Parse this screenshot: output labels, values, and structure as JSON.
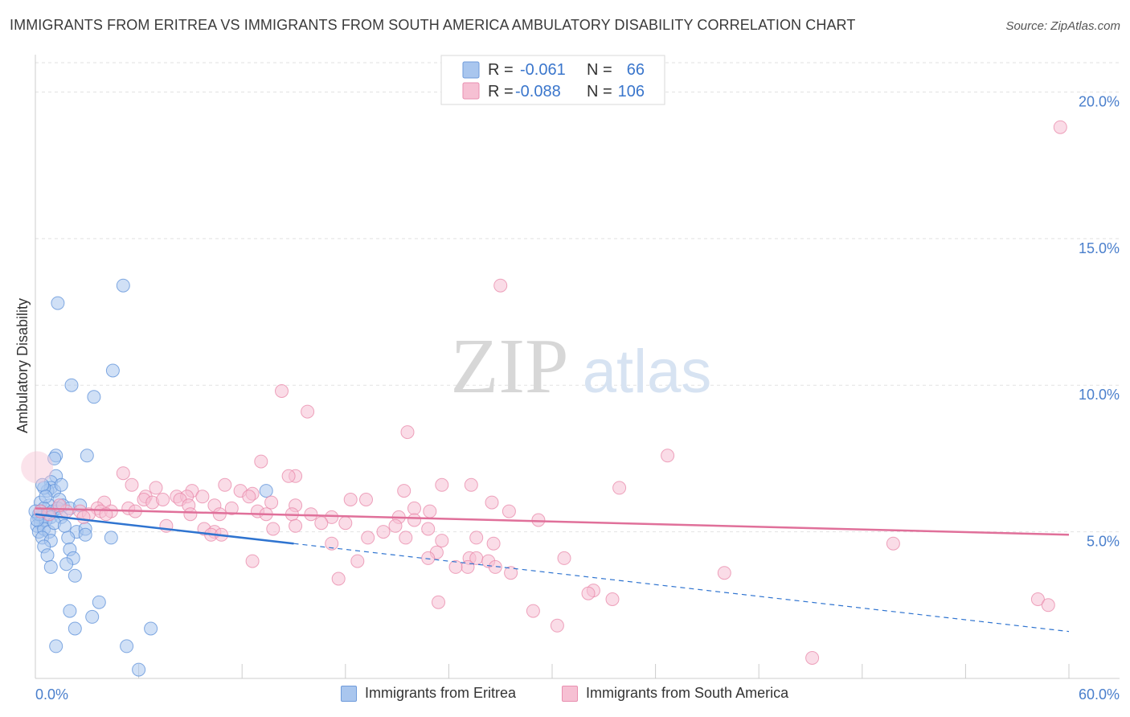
{
  "title": "IMMIGRANTS FROM ERITREA VS IMMIGRANTS FROM SOUTH AMERICA AMBULATORY DISABILITY CORRELATION CHART",
  "source": "Source: ZipAtlas.com",
  "watermark": {
    "zip": "ZIP",
    "atlas": "atlas"
  },
  "chart_data": {
    "type": "scatter",
    "xlabel": "",
    "ylabel": "Ambulatory Disability",
    "xlim": [
      0,
      60
    ],
    "ylim": [
      0,
      21
    ],
    "x_tick_labels": [
      "0.0%",
      "60.0%"
    ],
    "y_ticks": [
      5,
      10,
      15,
      20
    ],
    "y_tick_labels": [
      "5.0%",
      "10.0%",
      "15.0%",
      "20.0%"
    ],
    "legend_top": [
      {
        "r_label": "R =",
        "r_value": "-0.061",
        "n_label": "N =",
        "n_value": "66"
      },
      {
        "r_label": "R =",
        "r_value": "-0.088",
        "n_label": "N =",
        "n_value": "106"
      }
    ],
    "series": [
      {
        "name": "Immigrants from Eritrea",
        "color": "#5b8fd8",
        "fill": "#a9c6ee",
        "line_color": "#2f74d0",
        "trend": {
          "x0": 0,
          "y0": 5.6,
          "x1": 15,
          "y1": 4.6,
          "dash_to_x": 60,
          "dash_to_y": 1.6
        },
        "points": [
          [
            1.3,
            12.8
          ],
          [
            5.1,
            13.4
          ],
          [
            4.5,
            10.5
          ],
          [
            2.1,
            10.0
          ],
          [
            3.4,
            9.6
          ],
          [
            1.2,
            7.6
          ],
          [
            1.1,
            7.5
          ],
          [
            3.0,
            7.6
          ],
          [
            1.2,
            6.9
          ],
          [
            0.9,
            6.7
          ],
          [
            0.9,
            6.5
          ],
          [
            0.7,
            6.4
          ],
          [
            1.1,
            6.4
          ],
          [
            0.5,
            6.5
          ],
          [
            0.4,
            6.6
          ],
          [
            0.3,
            6.0
          ],
          [
            1.4,
            6.1
          ],
          [
            0.8,
            5.9
          ],
          [
            0.5,
            5.8
          ],
          [
            0.3,
            5.7
          ],
          [
            1.0,
            5.7
          ],
          [
            1.3,
            5.8
          ],
          [
            1.6,
            5.9
          ],
          [
            0.7,
            5.6
          ],
          [
            0.4,
            5.5
          ],
          [
            0.2,
            5.5
          ],
          [
            0.9,
            5.5
          ],
          [
            1.5,
            5.5
          ],
          [
            2.0,
            5.8
          ],
          [
            0.3,
            5.3
          ],
          [
            0.1,
            5.2
          ],
          [
            0.6,
            5.4
          ],
          [
            0.2,
            5.0
          ],
          [
            0.5,
            5.1
          ],
          [
            0.8,
            5.0
          ],
          [
            1.1,
            5.3
          ],
          [
            2.4,
            5.0
          ],
          [
            2.9,
            5.1
          ],
          [
            2.9,
            4.9
          ],
          [
            0.4,
            4.8
          ],
          [
            0.9,
            4.7
          ],
          [
            1.9,
            4.8
          ],
          [
            4.4,
            4.8
          ],
          [
            0.5,
            4.5
          ],
          [
            0.7,
            4.2
          ],
          [
            2.0,
            4.4
          ],
          [
            2.2,
            4.1
          ],
          [
            0.9,
            3.8
          ],
          [
            1.8,
            3.9
          ],
          [
            2.3,
            3.5
          ],
          [
            3.7,
            2.6
          ],
          [
            2.0,
            2.3
          ],
          [
            3.3,
            2.1
          ],
          [
            2.3,
            1.7
          ],
          [
            6.7,
            1.7
          ],
          [
            1.2,
            1.1
          ],
          [
            5.3,
            1.1
          ],
          [
            6.0,
            0.3
          ],
          [
            13.4,
            6.4
          ],
          [
            1.7,
            5.2
          ],
          [
            0.6,
            6.2
          ],
          [
            1.5,
            6.6
          ],
          [
            2.6,
            5.9
          ],
          [
            0.2,
            5.6
          ],
          [
            0.0,
            5.7
          ],
          [
            0.1,
            5.4
          ]
        ]
      },
      {
        "name": "Immigrants from South America",
        "color": "#e887a8",
        "fill": "#f6c0d3",
        "line_color": "#e0709a",
        "trend": {
          "x0": 0,
          "y0": 5.8,
          "x1": 60,
          "y1": 4.9
        },
        "points": [
          [
            59.5,
            18.8
          ],
          [
            27.0,
            13.4
          ],
          [
            14.3,
            9.8
          ],
          [
            15.8,
            9.1
          ],
          [
            21.6,
            8.4
          ],
          [
            36.7,
            7.6
          ],
          [
            13.1,
            7.4
          ],
          [
            5.1,
            7.0
          ],
          [
            15.1,
            6.9
          ],
          [
            14.7,
            6.9
          ],
          [
            5.6,
            6.6
          ],
          [
            11.0,
            6.6
          ],
          [
            23.6,
            6.6
          ],
          [
            25.3,
            6.6
          ],
          [
            7.0,
            6.5
          ],
          [
            11.9,
            6.4
          ],
          [
            12.6,
            6.3
          ],
          [
            9.1,
            6.4
          ],
          [
            33.9,
            6.5
          ],
          [
            21.4,
            6.4
          ],
          [
            12.4,
            6.2
          ],
          [
            6.4,
            6.2
          ],
          [
            8.2,
            6.2
          ],
          [
            8.8,
            6.2
          ],
          [
            9.7,
            6.2
          ],
          [
            6.3,
            6.1
          ],
          [
            6.8,
            6.0
          ],
          [
            7.4,
            6.1
          ],
          [
            8.4,
            6.1
          ],
          [
            18.3,
            6.1
          ],
          [
            19.2,
            6.1
          ],
          [
            4.0,
            6.0
          ],
          [
            13.7,
            6.0
          ],
          [
            26.5,
            6.0
          ],
          [
            15.1,
            5.9
          ],
          [
            11.4,
            5.8
          ],
          [
            8.9,
            5.9
          ],
          [
            10.4,
            5.9
          ],
          [
            3.6,
            5.8
          ],
          [
            5.4,
            5.8
          ],
          [
            3.8,
            5.7
          ],
          [
            1.8,
            5.7
          ],
          [
            2.6,
            5.7
          ],
          [
            4.4,
            5.7
          ],
          [
            5.8,
            5.7
          ],
          [
            12.9,
            5.7
          ],
          [
            22.0,
            5.8
          ],
          [
            22.9,
            5.7
          ],
          [
            27.5,
            5.7
          ],
          [
            9.0,
            5.6
          ],
          [
            10.7,
            5.6
          ],
          [
            13.4,
            5.6
          ],
          [
            14.9,
            5.6
          ],
          [
            16.0,
            5.6
          ],
          [
            3.1,
            5.6
          ],
          [
            4.1,
            5.6
          ],
          [
            2.8,
            5.5
          ],
          [
            17.2,
            5.5
          ],
          [
            21.1,
            5.5
          ],
          [
            22.0,
            5.4
          ],
          [
            29.2,
            5.4
          ],
          [
            16.6,
            5.3
          ],
          [
            18.0,
            5.3
          ],
          [
            20.9,
            5.2
          ],
          [
            22.8,
            5.1
          ],
          [
            7.6,
            5.2
          ],
          [
            9.8,
            5.1
          ],
          [
            10.4,
            5.0
          ],
          [
            10.2,
            4.9
          ],
          [
            10.8,
            4.9
          ],
          [
            13.8,
            5.1
          ],
          [
            15.1,
            5.2
          ],
          [
            19.3,
            4.8
          ],
          [
            20.2,
            5.0
          ],
          [
            21.5,
            4.8
          ],
          [
            23.6,
            4.7
          ],
          [
            25.6,
            4.8
          ],
          [
            17.2,
            4.6
          ],
          [
            26.6,
            4.6
          ],
          [
            49.8,
            4.6
          ],
          [
            23.3,
            4.3
          ],
          [
            22.8,
            4.1
          ],
          [
            25.2,
            4.1
          ],
          [
            25.6,
            4.1
          ],
          [
            26.3,
            4.0
          ],
          [
            30.7,
            4.1
          ],
          [
            18.7,
            4.0
          ],
          [
            12.6,
            4.0
          ],
          [
            25.1,
            3.8
          ],
          [
            24.4,
            3.8
          ],
          [
            26.7,
            3.8
          ],
          [
            27.6,
            3.6
          ],
          [
            40.0,
            3.6
          ],
          [
            17.6,
            3.4
          ],
          [
            32.4,
            3.0
          ],
          [
            32.1,
            2.9
          ],
          [
            33.5,
            2.7
          ],
          [
            23.4,
            2.6
          ],
          [
            58.2,
            2.7
          ],
          [
            58.8,
            2.5
          ],
          [
            28.9,
            2.3
          ],
          [
            30.3,
            1.8
          ],
          [
            45.1,
            0.7
          ],
          [
            0.8,
            5.6
          ],
          [
            1.4,
            5.9
          ],
          [
            0.3,
            5.7
          ]
        ]
      }
    ]
  },
  "legend_bottom": [
    {
      "label": "Immigrants from Eritrea"
    },
    {
      "label": "Immigrants from South America"
    }
  ]
}
